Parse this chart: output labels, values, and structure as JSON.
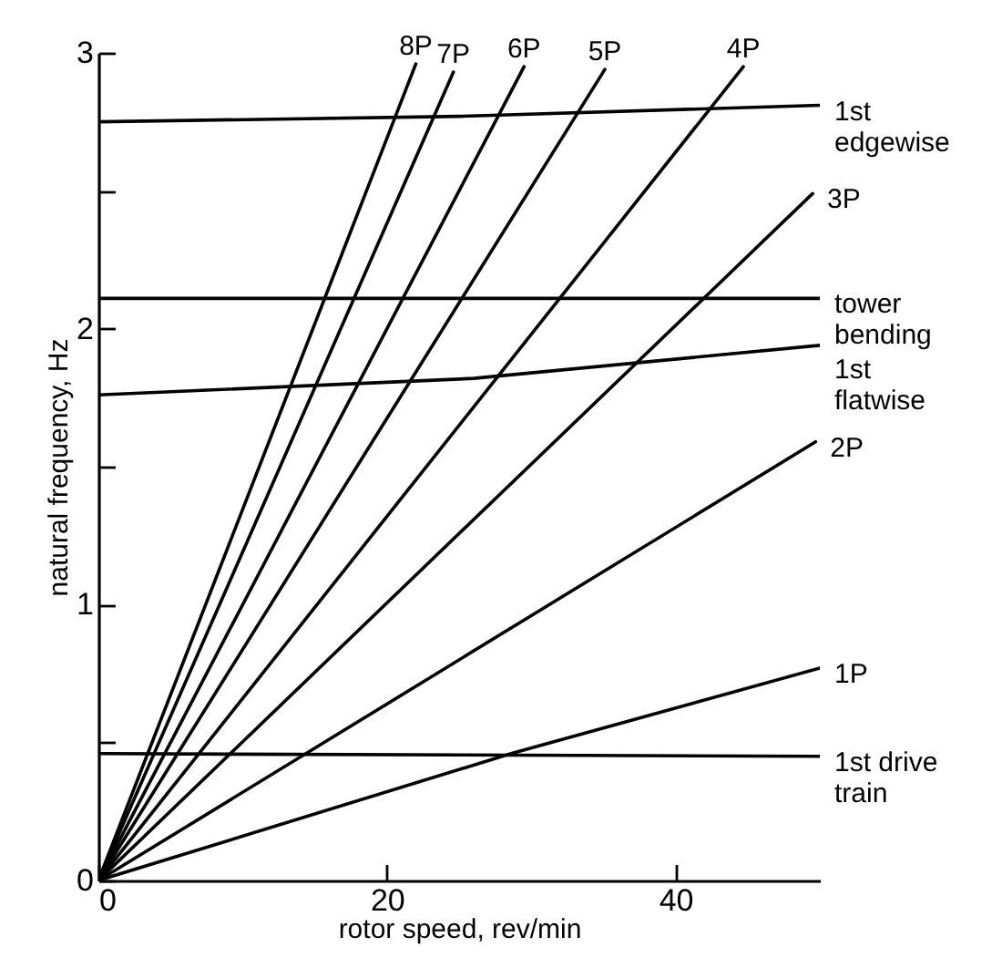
{
  "chart_data": {
    "type": "line",
    "xlabel": "rotor speed, rev/min",
    "ylabel": "natural frequency, Hz",
    "xlim": [
      0,
      50
    ],
    "ylim": [
      0,
      3
    ],
    "xticks": [
      0,
      20,
      40
    ],
    "yticks": [
      0,
      {
        "value": 0.5,
        "label": null
      },
      1,
      {
        "value": 1.5,
        "label": null
      },
      2,
      {
        "value": 2.5,
        "label": null
      },
      3
    ],
    "grid": false,
    "marker": "none",
    "line_style": "solid",
    "series": [
      {
        "name": "1st\nedgewise",
        "color": "#000000",
        "x": [
          0,
          25,
          50
        ],
        "values": [
          2.75,
          2.77,
          2.81
        ]
      },
      {
        "name": "tower\nbending",
        "color": "#000000",
        "x": [
          0,
          50
        ],
        "values": [
          2.11,
          2.11
        ]
      },
      {
        "name": "1st\nflatwise",
        "color": "#000000",
        "x": [
          0,
          26,
          50
        ],
        "values": [
          1.76,
          1.82,
          1.94
        ]
      },
      {
        "name": "1st drive\ntrain",
        "color": "#000000",
        "x": [
          0,
          50
        ],
        "values": [
          0.46,
          0.45
        ]
      },
      {
        "name": "8P",
        "color": "#000000",
        "x": [
          0,
          22
        ],
        "values": [
          0,
          2.96
        ]
      },
      {
        "name": "7P",
        "color": "#000000",
        "x": [
          0,
          24.6
        ],
        "values": [
          0,
          2.93
        ]
      },
      {
        "name": "6P",
        "color": "#000000",
        "x": [
          0,
          29.5
        ],
        "values": [
          0,
          2.95
        ]
      },
      {
        "name": "5P",
        "color": "#000000",
        "x": [
          0,
          35.1
        ],
        "values": [
          0,
          2.94
        ]
      },
      {
        "name": "4P",
        "color": "#000000",
        "x": [
          0,
          44.7
        ],
        "values": [
          0,
          2.95
        ]
      },
      {
        "name": "3P",
        "color": "#000000",
        "x": [
          0,
          49.5
        ],
        "values": [
          0,
          2.49
        ]
      },
      {
        "name": "2P",
        "color": "#000000",
        "x": [
          0,
          49.7
        ],
        "values": [
          0,
          1.59
        ]
      },
      {
        "name": "1P",
        "color": "#000000",
        "x": [
          0,
          28.6,
          50
        ],
        "values": [
          0,
          0.46,
          0.77
        ]
      }
    ]
  }
}
